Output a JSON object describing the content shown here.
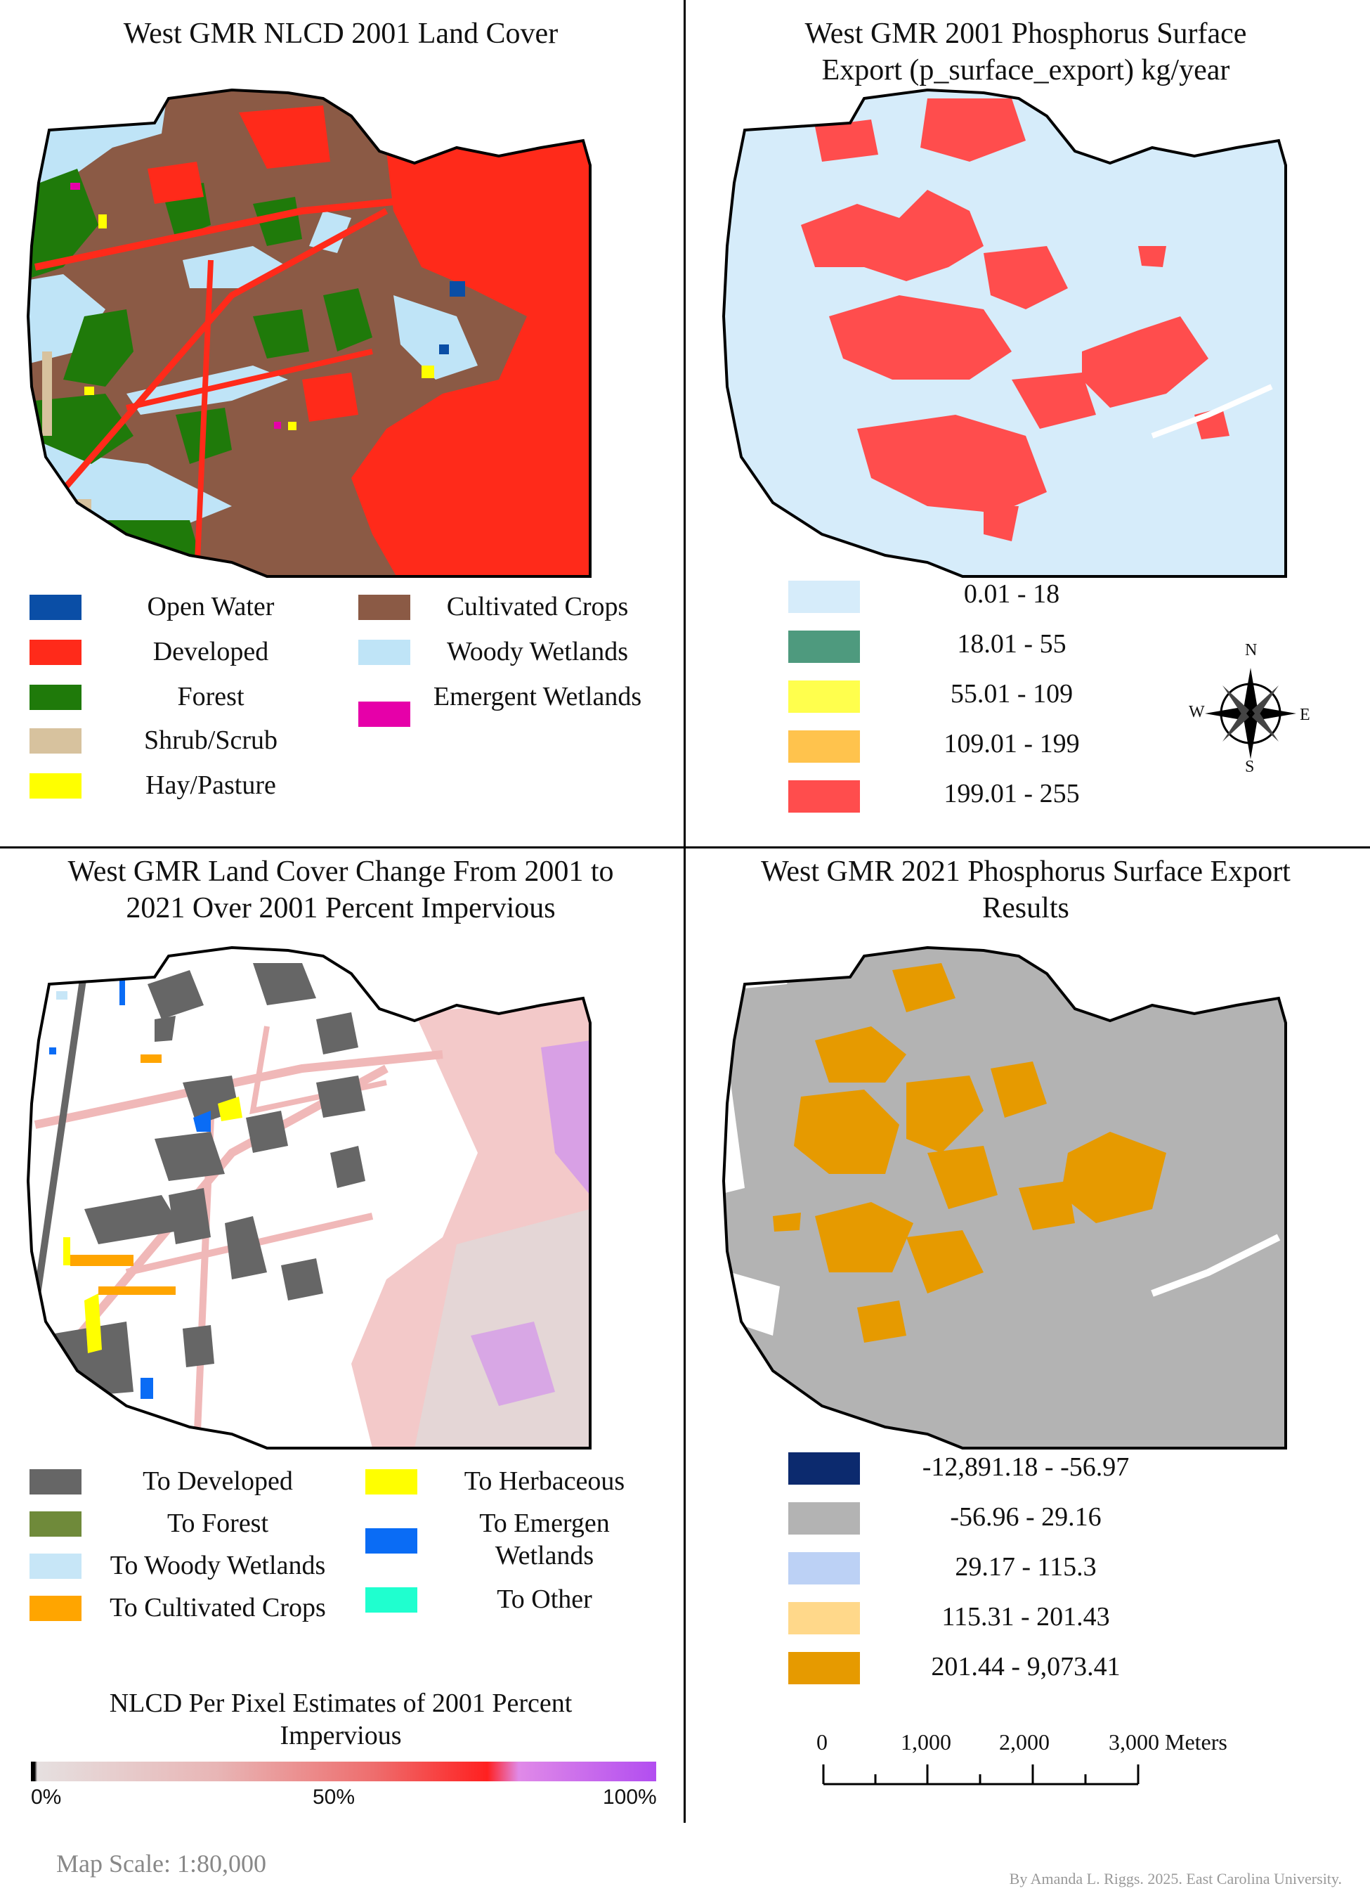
{
  "panels": {
    "top_left": {
      "title_line1": "West GMR NLCD 2001 Land Cover",
      "legend": [
        {
          "label": "Open Water",
          "color": "#0a4ea6"
        },
        {
          "label": "Developed",
          "color": "#ff2a1a"
        },
        {
          "label": "Forest",
          "color": "#1f7a0a"
        },
        {
          "label": "Shrub/Scrub",
          "color": "#d7c29e"
        },
        {
          "label": "Hay/Pasture",
          "color": "#ffff00"
        },
        {
          "label": "Cultivated Crops",
          "color": "#8b5a45"
        },
        {
          "label": "Woody Wetlands",
          "color": "#bfe4f7"
        },
        {
          "label": "Emergent Wetlands",
          "color": "#e600a9"
        }
      ]
    },
    "top_right": {
      "title_line1": "West GMR 2001  Phosphorus Surface",
      "title_line2": "Export (p_surface_export) kg/year",
      "legend": [
        {
          "label": "0.01 - 18",
          "color": "#d6ecfa"
        },
        {
          "label": "18.01 - 55",
          "color": "#4e9a7e"
        },
        {
          "label": "55.01 - 109",
          "color": "#ffff4d"
        },
        {
          "label": "109.01 - 199",
          "color": "#ffc34d"
        },
        {
          "label": "199.01 - 255",
          "color": "#ff4d4d"
        }
      ],
      "compass": {
        "n": "N",
        "s": "S",
        "e": "E",
        "w": "W"
      }
    },
    "bottom_left": {
      "title_line1": "West GMR Land Cover Change From 2001 to",
      "title_line2": "2021 Over 2001 Percent Impervious",
      "legend": [
        {
          "label": "To Developed",
          "color": "#666666"
        },
        {
          "label": "To Forest",
          "color": "#6f8a3a"
        },
        {
          "label": "To Woody Wetlands",
          "color": "#c7e6f7"
        },
        {
          "label": "To Cultivated Crops",
          "color": "#ffa500"
        },
        {
          "label": "To Herbaceous",
          "color": "#ffff00"
        },
        {
          "label": "To Emergen Wetlands",
          "color": "#0a6cf5"
        },
        {
          "label": "To Other",
          "color": "#1fffcf"
        }
      ],
      "ramp_title_line1": "NLCD Per Pixel Estimates of 2001 Percent",
      "ramp_title_line2": "Impervious",
      "ramp_labels": [
        "0%",
        "50%",
        "100%"
      ]
    },
    "bottom_right": {
      "title_line1": "West GMR 2021 Phosphorus Surface Export",
      "title_line2": "Results",
      "legend": [
        {
          "label": "-12,891.18 - -56.97",
          "color": "#0c2a6e"
        },
        {
          "label": "-56.96 - 29.16",
          "color": "#b3b3b3"
        },
        {
          "label": "29.17 - 115.3",
          "color": "#bcd1f5"
        },
        {
          "label": "115.31 - 201.43",
          "color": "#ffd88a"
        },
        {
          "label": "201.44 - 9,073.41",
          "color": "#e69a00"
        }
      ],
      "scale_labels": [
        "0",
        "1,000",
        "2,000",
        "3,000 Meters"
      ]
    }
  },
  "footer": {
    "map_scale": "Map Scale: 1:80,000",
    "credit": "By Amanda L. Riggs. 2025. East Carolina University."
  }
}
